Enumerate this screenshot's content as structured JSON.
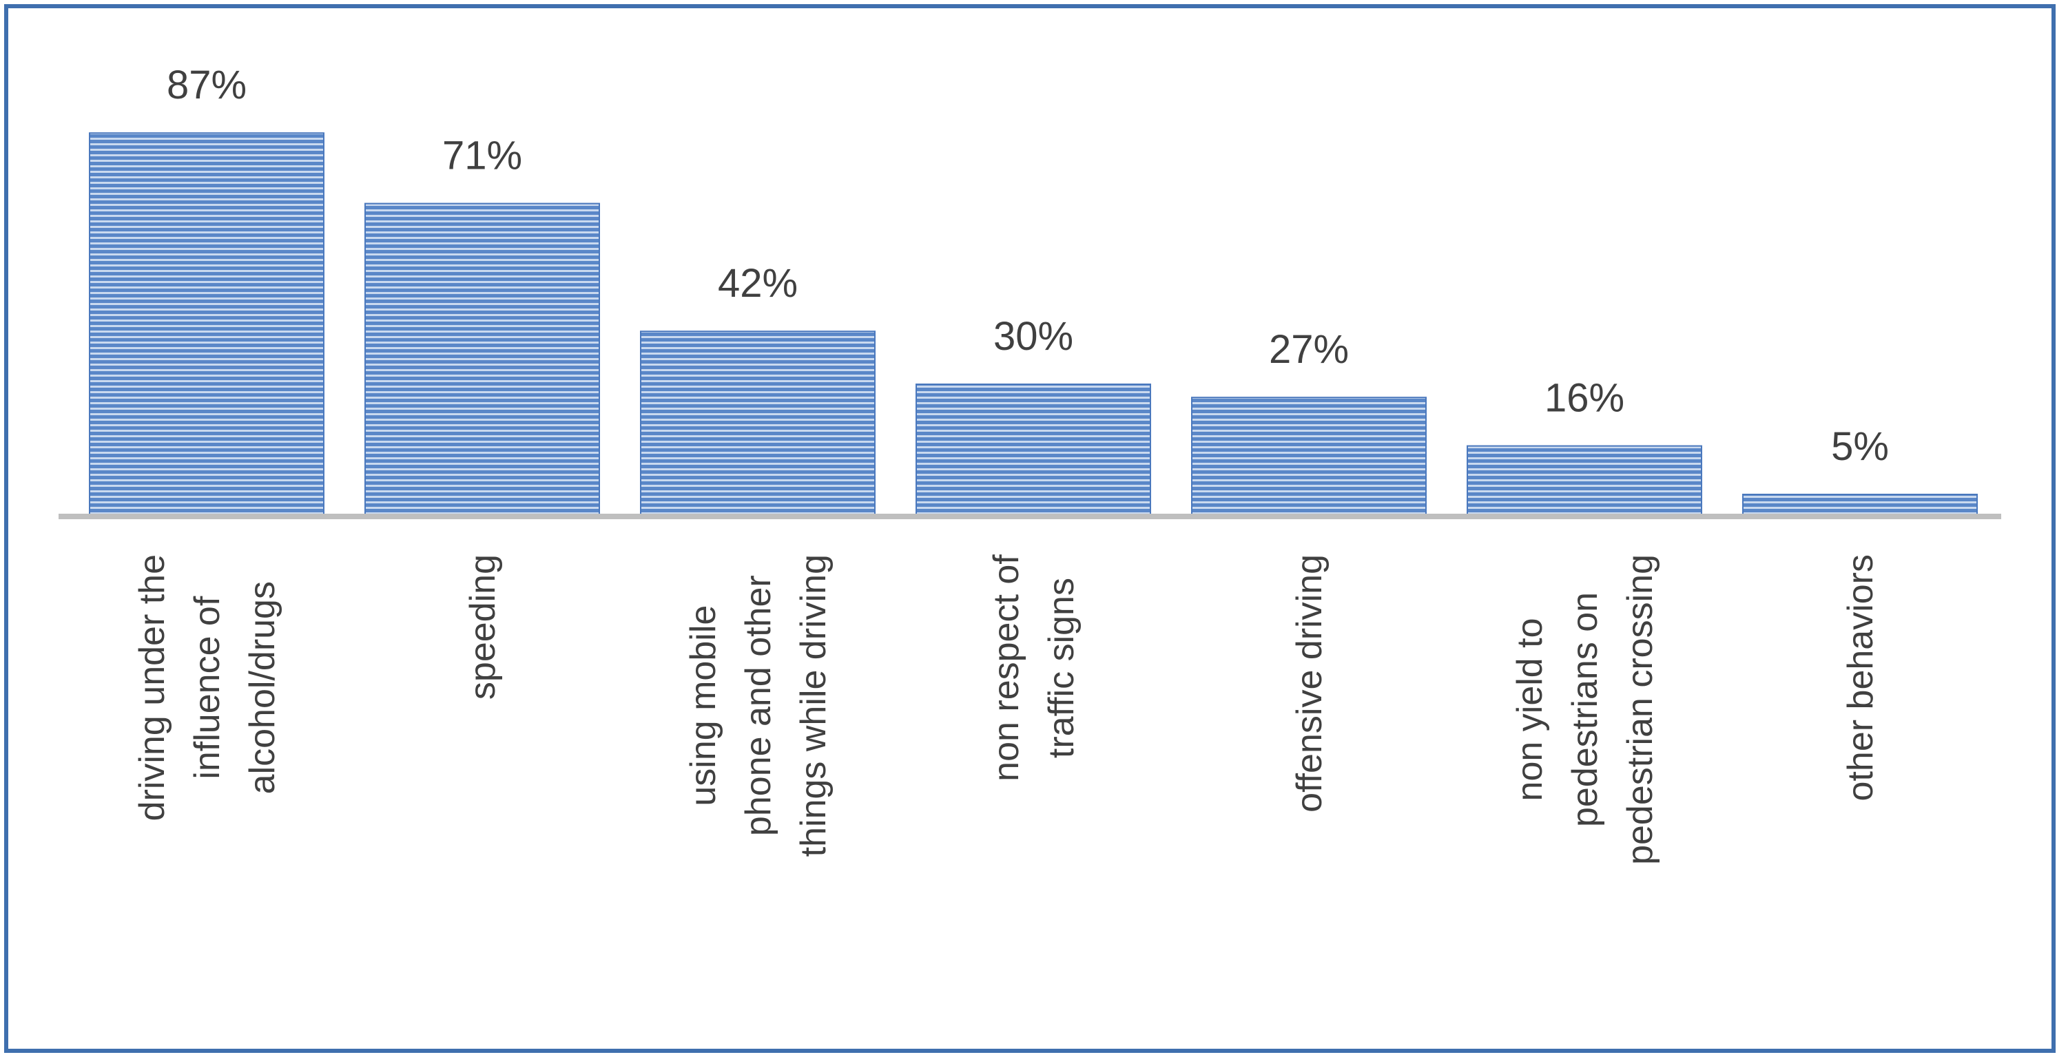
{
  "chart_data": {
    "type": "bar",
    "categories": [
      [
        "driving under the",
        "influence of",
        "alcohol/drugs"
      ],
      [
        "speeding"
      ],
      [
        "using mobile",
        "phone and other",
        "things while driving"
      ],
      [
        "non respect of",
        "traffic signs"
      ],
      [
        "offensive driving"
      ],
      [
        "non yield to",
        "pedestrians on",
        "pedestrian crossing"
      ],
      [
        "other behaviors"
      ]
    ],
    "values": [
      87,
      71,
      42,
      30,
      27,
      16,
      5
    ],
    "value_labels": [
      "87%",
      "71%",
      "42%",
      "30%",
      "27%",
      "16%",
      "5%"
    ],
    "unit": "%",
    "ylim": [
      0,
      100
    ],
    "grid": false,
    "legend": "none",
    "colors": {
      "bar_fill": "#5a87c8",
      "bar_stripe_light": "#c9d9ef",
      "axis": "#bfbfbf",
      "text": "#404040",
      "border": "#3f6fae"
    }
  }
}
